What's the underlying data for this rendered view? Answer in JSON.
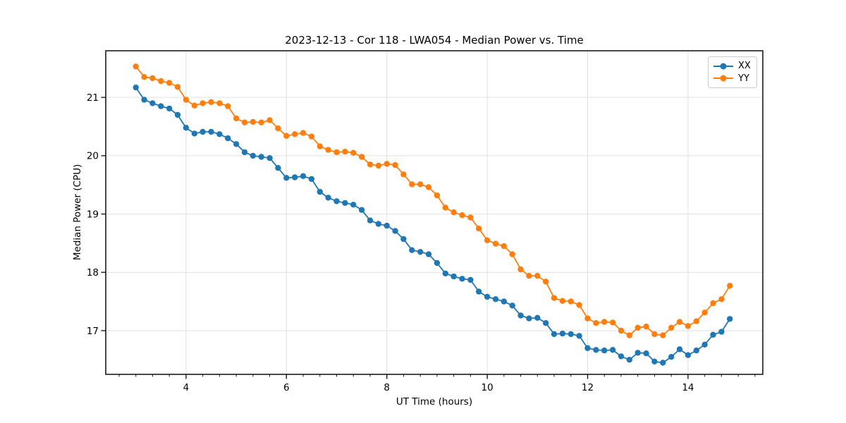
{
  "figure": {
    "background": "#ffffff"
  },
  "chart_data": {
    "type": "line",
    "title": "2023-12-13 - Cor 118 - LWA054 - Median Power vs. Time",
    "xlabel": "UT Time (hours)",
    "ylabel": "Median Power (CPU)",
    "xlim": [
      2.4,
      15.49
    ],
    "ylim": [
      16.25,
      21.8
    ],
    "x_major_ticks": [
      4,
      6,
      8,
      10,
      12,
      14
    ],
    "x_minor_step": 0.33333,
    "y_major_ticks": [
      17,
      18,
      19,
      20,
      21
    ],
    "grid": "major",
    "grid_color": "#e0e0e0",
    "spine_color": "#1a1a1a",
    "tick_color": "#1a1a1a",
    "legend": {
      "position": "upper-right",
      "items": [
        "XX",
        "YY"
      ]
    },
    "x": [
      3.0,
      3.167,
      3.333,
      3.5,
      3.667,
      3.833,
      4.0,
      4.167,
      4.333,
      4.5,
      4.667,
      4.833,
      5.0,
      5.167,
      5.333,
      5.5,
      5.667,
      5.833,
      6.0,
      6.167,
      6.333,
      6.5,
      6.667,
      6.833,
      7.0,
      7.167,
      7.333,
      7.5,
      7.667,
      7.833,
      8.0,
      8.167,
      8.333,
      8.5,
      8.667,
      8.833,
      9.0,
      9.167,
      9.333,
      9.5,
      9.667,
      9.833,
      10.0,
      10.167,
      10.333,
      10.5,
      10.667,
      10.833,
      11.0,
      11.167,
      11.333,
      11.5,
      11.667,
      11.833,
      12.0,
      12.167,
      12.333,
      12.5,
      12.667,
      12.833,
      13.0,
      13.167,
      13.333,
      13.5,
      13.667,
      13.833,
      14.0,
      14.167,
      14.333,
      14.5,
      14.667,
      14.833
    ],
    "series": [
      {
        "name": "XX",
        "color": "#1f77b4",
        "marker": "circle",
        "values": [
          21.17,
          20.96,
          20.9,
          20.85,
          20.81,
          20.7,
          20.48,
          20.38,
          20.41,
          20.41,
          20.37,
          20.3,
          20.2,
          20.06,
          20.0,
          19.98,
          19.96,
          19.79,
          19.62,
          19.63,
          19.65,
          19.6,
          19.38,
          19.28,
          19.22,
          19.19,
          19.16,
          19.07,
          18.89,
          18.83,
          18.8,
          18.71,
          18.57,
          18.38,
          18.35,
          18.31,
          18.16,
          17.98,
          17.93,
          17.89,
          17.87,
          17.67,
          17.58,
          17.54,
          17.5,
          17.43,
          17.26,
          17.21,
          17.22,
          17.13,
          16.94,
          16.95,
          16.94,
          16.91,
          16.7,
          16.67,
          16.66,
          16.67,
          16.56,
          16.5,
          16.62,
          16.61,
          16.47,
          16.45,
          16.55,
          16.68,
          16.58,
          16.66,
          16.76,
          16.93,
          16.98,
          17.2
        ]
      },
      {
        "name": "YY",
        "color": "#ff7f0e",
        "marker": "circle",
        "values": [
          21.53,
          21.35,
          21.33,
          21.28,
          21.25,
          21.18,
          20.96,
          20.86,
          20.9,
          20.92,
          20.9,
          20.85,
          20.64,
          20.57,
          20.58,
          20.57,
          20.61,
          20.47,
          20.34,
          20.37,
          20.39,
          20.33,
          20.16,
          20.1,
          20.06,
          20.07,
          20.05,
          19.98,
          19.85,
          19.83,
          19.86,
          19.84,
          19.68,
          19.51,
          19.51,
          19.46,
          19.32,
          19.11,
          19.03,
          18.98,
          18.94,
          18.75,
          18.55,
          18.49,
          18.45,
          18.31,
          18.05,
          17.94,
          17.94,
          17.84,
          17.56,
          17.51,
          17.5,
          17.44,
          17.21,
          17.13,
          17.15,
          17.14,
          17.0,
          16.92,
          17.05,
          17.07,
          16.94,
          16.92,
          17.05,
          17.15,
          17.08,
          17.16,
          17.31,
          17.47,
          17.54,
          17.77
        ]
      }
    ]
  }
}
